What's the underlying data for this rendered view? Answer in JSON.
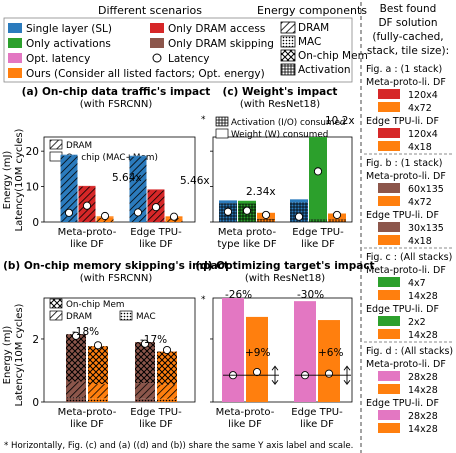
{
  "legend": {
    "scenarios_title": "Different scenarios",
    "components_title": "Energy components",
    "items": [
      {
        "label": "Single layer (SL)",
        "color": "#2b7bbd"
      },
      {
        "label": "Only activations",
        "color": "#2ca02c"
      },
      {
        "label": "Opt. latency",
        "color": "#e377c2"
      },
      {
        "label": "Ours (Consider all listed factors; Opt. energy)",
        "color": "#ff7f0e"
      },
      {
        "label": "Only DRAM access",
        "color": "#d62728"
      },
      {
        "label": "Only DRAM skipping",
        "color": "#8c564b"
      },
      {
        "label": "Latency"
      }
    ],
    "components": [
      "DRAM",
      "MAC",
      "On-chip Mem",
      "Activation"
    ]
  },
  "side_panel": {
    "title_lines": [
      "Best found",
      "DF solution",
      "(fully-cached,",
      "stack, tile size):"
    ],
    "groups": [
      {
        "header": "Fig. a : (1 stack)",
        "entries": [
          {
            "name": "Meta-proto-li. DF",
            "rows": [
              {
                "color": "#d62728",
                "size": "120x4"
              },
              {
                "color": "#ff7f0e",
                "size": "4x72"
              }
            ]
          },
          {
            "name": "Edge TPU-li. DF",
            "rows": [
              {
                "color": "#d62728",
                "size": "120x4"
              },
              {
                "color": "#ff7f0e",
                "size": "4x18"
              }
            ]
          }
        ]
      },
      {
        "header": "Fig. b : (1 stack)",
        "entries": [
          {
            "name": "Meta-proto-li. DF",
            "rows": [
              {
                "color": "#8c564b",
                "size": "60x135"
              },
              {
                "color": "#ff7f0e",
                "size": "4x72"
              }
            ]
          },
          {
            "name": "Edge TPU-li. DF",
            "rows": [
              {
                "color": "#8c564b",
                "size": "30x135"
              },
              {
                "color": "#ff7f0e",
                "size": "4x18"
              }
            ]
          }
        ]
      },
      {
        "header": "Fig. c : (All stacks)",
        "entries": [
          {
            "name": "Meta-proto-li. DF",
            "rows": [
              {
                "color": "#2ca02c",
                "size": "4x7"
              },
              {
                "color": "#ff7f0e",
                "size": "14x28"
              }
            ]
          },
          {
            "name": "Edge TPU-li. DF",
            "rows": [
              {
                "color": "#2ca02c",
                "size": "2x2"
              },
              {
                "color": "#ff7f0e",
                "size": "14x28"
              }
            ]
          }
        ]
      },
      {
        "header": "Fig. d : (All stacks)",
        "entries": [
          {
            "name": "Meta-proto-li. DF",
            "rows": [
              {
                "color": "#e377c2",
                "size": "28x28"
              },
              {
                "color": "#ff7f0e",
                "size": "14x28"
              }
            ]
          },
          {
            "name": "Edge TPU-li. DF",
            "rows": [
              {
                "color": "#e377c2",
                "size": "28x28"
              },
              {
                "color": "#ff7f0e",
                "size": "14x28"
              }
            ]
          }
        ]
      }
    ]
  },
  "footnote": "* Horizontally, Fig. (c) and (a) ((d) and (b)) share the same Y axis label and scale.",
  "chart_data": [
    {
      "id": "a",
      "type": "bar",
      "title": "(a) On-chip data traffic's impact",
      "subtitle": "(with FSRCNN)",
      "ylabel_lines": [
        "Energy (mJ)",
        "Latency(10M cycles)"
      ],
      "ylim": [
        0,
        24
      ],
      "yticks": [
        0,
        10,
        20
      ],
      "categories": [
        "Meta-proto-like DF",
        "Edge TPU-like DF"
      ],
      "category_label_lines": [
        [
          "Meta-proto-",
          "like DF"
        ],
        [
          "Edge TPU-",
          "like DF"
        ]
      ],
      "legend": [
        "DRAM",
        "On chip (MAC+Mem)"
      ],
      "series": [
        {
          "name": "Single layer (SL)",
          "color": "#2b7bbd",
          "dram": [
            18.7,
            18.4
          ],
          "onchip": [
            0.3,
            0.3
          ],
          "latency": [
            2.6,
            2.7
          ]
        },
        {
          "name": "Only DRAM access",
          "color": "#d62728",
          "dram": [
            10.0,
            8.9
          ],
          "onchip": [
            0.2,
            0.3
          ],
          "latency": [
            4.6,
            4.2
          ]
        },
        {
          "name": "Ours",
          "color": "#ff7f0e",
          "dram": [
            1.2,
            1.1
          ],
          "onchip": [
            0.4,
            0.5
          ],
          "latency": [
            1.7,
            1.5
          ]
        }
      ],
      "annotations": [
        "5.64x",
        "5.46x"
      ]
    },
    {
      "id": "c",
      "type": "bar",
      "title": "(c) Weight's impact",
      "subtitle": "(with ResNet18)",
      "ylim": [
        0,
        24
      ],
      "yticks": [
        0,
        10,
        20
      ],
      "categories": [
        "Meta-proto-type like DF",
        "Edge TPU-like DF"
      ],
      "category_label_lines": [
        [
          "Meta proto-",
          "type like DF"
        ],
        [
          "Edge TPU-",
          "like DF"
        ]
      ],
      "legend": [
        "Activation (I/O) consumed",
        "Weight (W) consumed"
      ],
      "series": [
        {
          "name": "Single layer (SL)",
          "color": "#2b7bbd",
          "activation": [
            5.3,
            5.6
          ],
          "weight": [
            0.8,
            0.8
          ],
          "latency": [
            2.9,
            1.5
          ]
        },
        {
          "name": "Only activations",
          "color": "#2ca02c",
          "activation": [
            5.2,
            0.8
          ],
          "weight": [
            0.8,
            24.5
          ],
          "latency": [
            3.2,
            14.3
          ]
        },
        {
          "name": "Ours",
          "color": "#ff7f0e",
          "activation": [
            0.9,
            0.8
          ],
          "weight": [
            1.7,
            1.6
          ],
          "latency": [
            2.0,
            2.0
          ]
        }
      ],
      "annotations": [
        "2.34x",
        "10.2x"
      ]
    },
    {
      "id": "b",
      "type": "bar",
      "title": "(b) On-chip memory skipping's impact",
      "subtitle": "(with FSRCNN)",
      "ylabel_lines": [
        "Energy (mJ)",
        "Latency(10M cycles)"
      ],
      "ylim": [
        0,
        3.3
      ],
      "yticks": [
        0,
        2
      ],
      "categories": [
        "Meta-proto-like DF",
        "Edge TPU-like DF"
      ],
      "category_label_lines": [
        [
          "Meta-proto-",
          "like DF"
        ],
        [
          "Edge TPU-",
          "like DF"
        ]
      ],
      "legend": [
        "On-chip Mem",
        "DRAM",
        "MAC"
      ],
      "series": [
        {
          "name": "Only DRAM skipping",
          "color": "#8c564b",
          "onchip": [
            1.5,
            1.3
          ],
          "dram": [
            0.5,
            0.5
          ],
          "mac": [
            0.15,
            0.1
          ],
          "latency": [
            2.1,
            1.85
          ]
        },
        {
          "name": "Ours",
          "color": "#ff7f0e",
          "onchip": [
            1.2,
            1.05
          ],
          "dram": [
            0.45,
            0.45
          ],
          "mac": [
            0.12,
            0.1
          ],
          "latency": [
            1.8,
            1.65
          ]
        }
      ],
      "annotations": [
        "-18%",
        "-17%"
      ]
    },
    {
      "id": "d",
      "type": "bar",
      "title": "(d) Optimizing target's impact",
      "subtitle": "(with ResNet18)",
      "ylim": [
        0,
        3.3
      ],
      "yticks": [
        0,
        2
      ],
      "categories": [
        "Meta-proto-like DF",
        "Edge TPU-like DF"
      ],
      "category_label_lines": [
        [
          "Meta-proto-",
          "like DF"
        ],
        [
          "Edge TPU-",
          "like DF"
        ]
      ],
      "series": [
        {
          "name": "Opt. latency",
          "color": "#e377c2",
          "energy": [
            3.3,
            3.2
          ],
          "latency": [
            0.85,
            0.85
          ]
        },
        {
          "name": "Ours",
          "color": "#ff7f0e",
          "energy": [
            2.7,
            2.6
          ],
          "latency": [
            0.95,
            0.9
          ]
        }
      ],
      "annotations": [
        "-26%",
        "-30%",
        "+9%",
        "+6%"
      ]
    }
  ]
}
